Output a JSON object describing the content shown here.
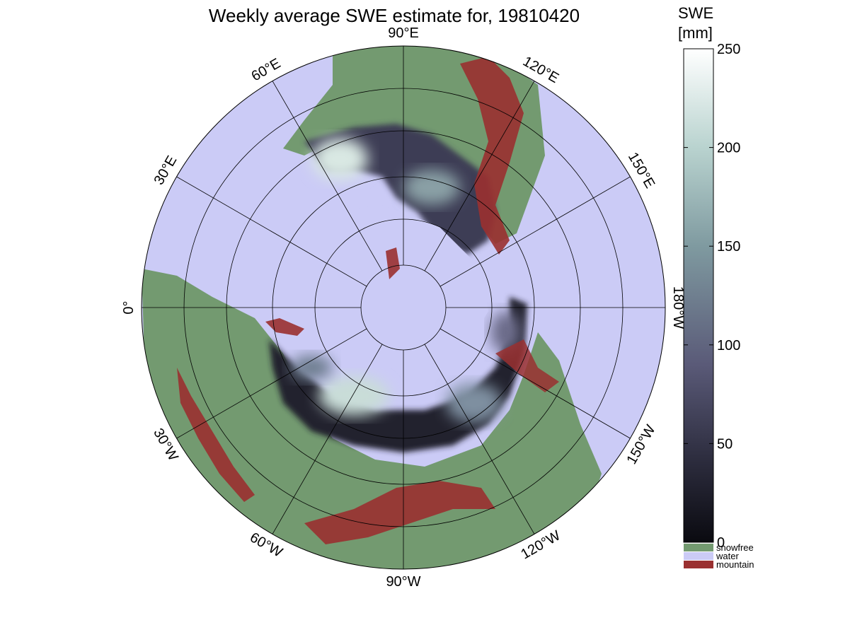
{
  "title": "Weekly average SWE estimate for, 19810420",
  "colorbar": {
    "title_line1": "SWE",
    "title_line2": "[mm]",
    "ticks": [
      "250",
      "200",
      "150",
      "100",
      "50",
      "0"
    ],
    "tick_values": [
      250,
      200,
      150,
      100,
      50,
      0
    ],
    "range": [
      0,
      250
    ],
    "gradient": [
      {
        "value": 0,
        "color": "#0a0a10"
      },
      {
        "value": 40,
        "color": "#2b2b3c"
      },
      {
        "value": 90,
        "color": "#5a5a78"
      },
      {
        "value": 150,
        "color": "#7f9aa0"
      },
      {
        "value": 200,
        "color": "#b9d3cf"
      },
      {
        "value": 250,
        "color": "#ffffff"
      }
    ]
  },
  "legend": [
    {
      "label": "snowfree",
      "color": "#739a70"
    },
    {
      "label": "water",
      "color": "#cbcbf6"
    },
    {
      "label": "mountain",
      "color": "#9a3030"
    }
  ],
  "meridian_labels": [
    {
      "text": "90°W",
      "lon": -90
    },
    {
      "text": "120°W",
      "lon": -120
    },
    {
      "text": "150°W",
      "lon": -150
    },
    {
      "text": "180°W",
      "lon": 180
    },
    {
      "text": "150°E",
      "lon": 150
    },
    {
      "text": "120°E",
      "lon": 120
    },
    {
      "text": "90°E",
      "lon": 90
    },
    {
      "text": "60°E",
      "lon": 60
    },
    {
      "text": "30°E",
      "lon": 30
    },
    {
      "text": "0°",
      "lon": 0
    },
    {
      "text": "30°W",
      "lon": -30
    },
    {
      "text": "60°W",
      "lon": -60
    }
  ],
  "colors": {
    "water": "#cbcbf6",
    "snowfree": "#739a70",
    "mountain": "#9a3030",
    "snow_dark": "#14141c",
    "snow_mid": "#555572",
    "snow_light": "#c9ddd8"
  }
}
